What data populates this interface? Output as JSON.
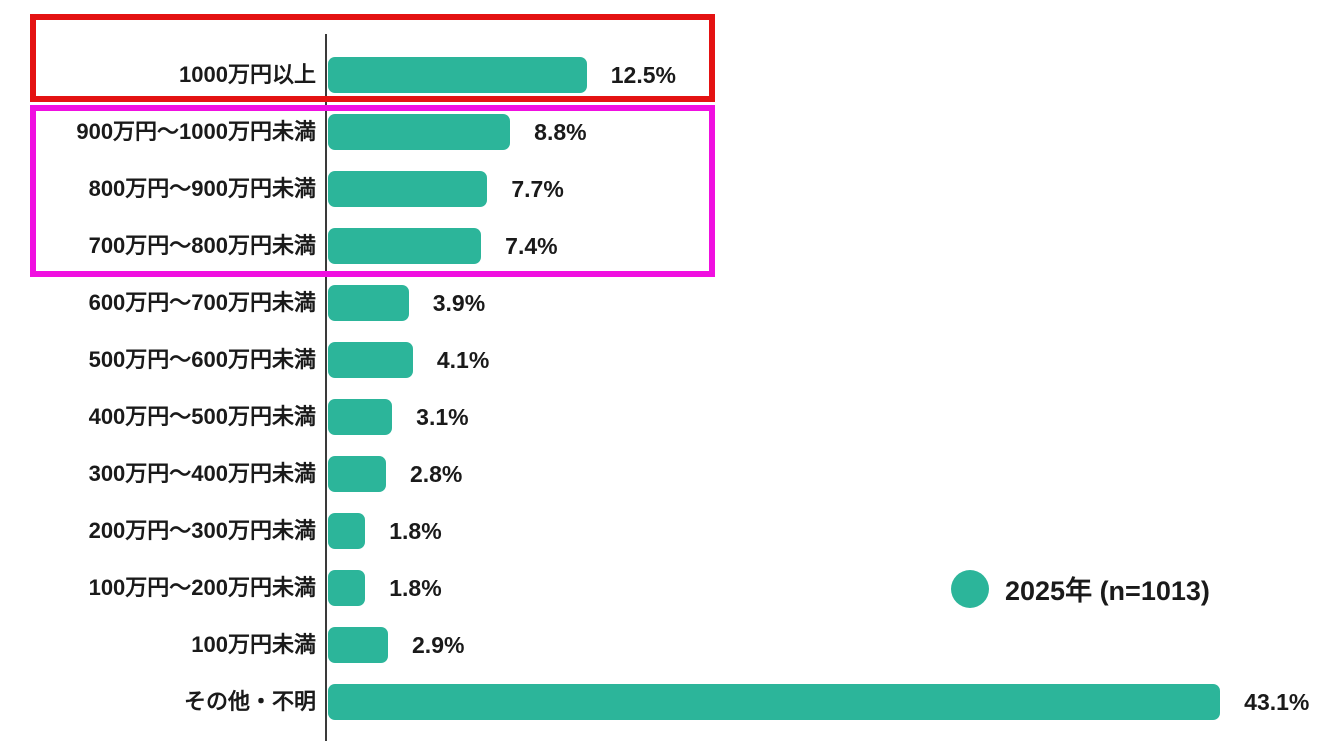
{
  "page": {
    "background": "#ffffff"
  },
  "chart_data": {
    "type": "bar",
    "orientation": "horizontal",
    "title": "",
    "xlabel": "",
    "ylabel": "",
    "categories": [
      "1000万円以上",
      "900万円〜1000万円未満",
      "800万円〜900万円未満",
      "700万円〜800万円未満",
      "600万円〜700万円未満",
      "500万円〜600万円未満",
      "400万円〜500万円未満",
      "300万円〜400万円未満",
      "200万円〜300万円未満",
      "100万円〜200万円未満",
      "100万円未満",
      "その他・不明"
    ],
    "values": [
      12.5,
      8.8,
      7.7,
      7.4,
      3.9,
      4.1,
      3.1,
      2.8,
      1.8,
      1.8,
      2.9,
      43.1
    ],
    "value_labels": [
      "12.5%",
      "8.8%",
      "7.7%",
      "7.4%",
      "3.9%",
      "4.1%",
      "3.1%",
      "2.8%",
      "1.8%",
      "1.8%",
      "2.9%",
      "43.1%"
    ],
    "unit": "%",
    "xlim": [
      0,
      45
    ],
    "grid": false,
    "bar_color": "#2cb59a",
    "legend": {
      "position": "right-middle",
      "marker": "circle",
      "marker_color": "#2cb59a",
      "label": "2025年 (n=1013)"
    }
  },
  "annotations": {
    "highlight_boxes": [
      {
        "name": "red-box",
        "color": "#e41212",
        "rows": [
          "1000万円以上"
        ]
      },
      {
        "name": "magenta-box",
        "color": "#f00fe0",
        "rows": [
          "900万円〜1000万円未満",
          "800万円〜900万円未満",
          "700万円〜800万円未満"
        ]
      }
    ]
  }
}
